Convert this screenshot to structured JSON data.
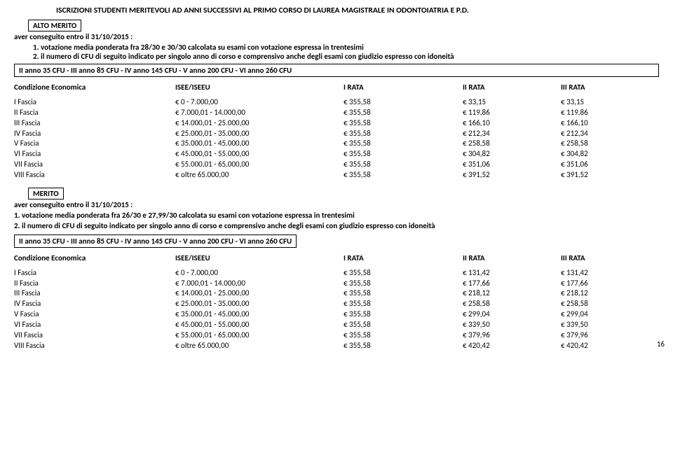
{
  "title": "ISCRIZIONI STUDENTI MERITEVOLI AD ANNI SUCCESSIVI AL PRIMO CORSO DI LAUREA MAGISTRALE IN ODONTOIATRIA E P.D.",
  "badge1": "ALTO MERITO",
  "deadline": "aver conseguito entro il 31/10/2015 :",
  "criteria1": [
    "votazione media ponderata fra 28/30 e 30/30 calcolata su esami con votazione espressa in trentesimi",
    "il numero di CFU di seguito indicato per singolo anno di corso e comprensivo anche  degli esami con giudizio espresso con idoneità"
  ],
  "cfu_bar": "II anno 35 CFU - III anno 85 CFU - IV anno 145 CFU - V anno 200 CFU - VI anno 260 CFU",
  "headers": {
    "cond": "Condizione Economica",
    "isee": "ISEE/ISEEU",
    "r1": "I RATA",
    "r2": "II RATA",
    "r3": "III RATA"
  },
  "euro": "€",
  "table1": [
    {
      "fascia": "I Fascia",
      "isee": "0 - 7.000,00",
      "r1": "355,58",
      "r2": "33,15",
      "r3": "33,15"
    },
    {
      "fascia": "II Fascia",
      "isee": "7.000,01 - 14.000,00",
      "r1": "355,58",
      "r2": "119,86",
      "r3": "119,86"
    },
    {
      "fascia": "III Fascia",
      "isee": "14.000,01 - 25.000,00",
      "r1": "355,58",
      "r2": "166,10",
      "r3": "166,10"
    },
    {
      "fascia": "IV Fascia",
      "isee": "25.000,01 - 35.000,00",
      "r1": "355,58",
      "r2": "212,34",
      "r3": "212,34"
    },
    {
      "fascia": "V Fascia",
      "isee": "35.000,01 - 45.000,00",
      "r1": "355,58",
      "r2": "258,58",
      "r3": "258,58"
    },
    {
      "fascia": "VI Fascia",
      "isee": "45.000,01 - 55.000,00",
      "r1": "355,58",
      "r2": "304,82",
      "r3": "304,82"
    },
    {
      "fascia": "VII Fascia",
      "isee": "55.000,01 - 65.000,00",
      "r1": "355,58",
      "r2": "351,06",
      "r3": "351,06"
    },
    {
      "fascia": "VIII Fascia",
      "isee": "oltre 65.000,00",
      "r1": "355,58",
      "r2": "391,52",
      "r3": "391,52"
    }
  ],
  "badge2": "MERITO",
  "criteria2": [
    "1. votazione media ponderata fra 26/30 e 27,99/30 calcolata su esami con votazione espressa in trentesimi",
    "2. il numero di CFU di seguito indicato per singolo anno di corso e comprensivo anche  degli esami con giudizio espresso con idoneità"
  ],
  "table2": [
    {
      "fascia": "I Fascia",
      "isee": "0 - 7.000,00",
      "r1": "355,58",
      "r2": "131,42",
      "r3": "131,42"
    },
    {
      "fascia": "II Fascia",
      "isee": "7.000,01 - 14.000,00",
      "r1": "355,58",
      "r2": "177,66",
      "r3": "177,66"
    },
    {
      "fascia": "III Fascia",
      "isee": "14.000,01 - 25.000,00",
      "r1": "355,58",
      "r2": "218,12",
      "r3": "218,12"
    },
    {
      "fascia": "IV Fascia",
      "isee": "25.000,01 - 35.000,00",
      "r1": "355,58",
      "r2": "258,58",
      "r3": "258,58"
    },
    {
      "fascia": "V Fascia",
      "isee": "35.000,01 - 45.000,00",
      "r1": "355,58",
      "r2": "299,04",
      "r3": "299,04"
    },
    {
      "fascia": "VI Fascia",
      "isee": "45.000,01 - 55.000,00",
      "r1": "355,58",
      "r2": "339,50",
      "r3": "339,50"
    },
    {
      "fascia": "VII Fascia",
      "isee": "55.000,01 - 65.000,00",
      "r1": "355,58",
      "r2": "379,96",
      "r3": "379,96"
    },
    {
      "fascia": "VIII Fascia",
      "isee": "oltre 65.000,00",
      "r1": "355,58",
      "r2": "420,42",
      "r3": "420,42"
    }
  ],
  "pagenum": "16"
}
